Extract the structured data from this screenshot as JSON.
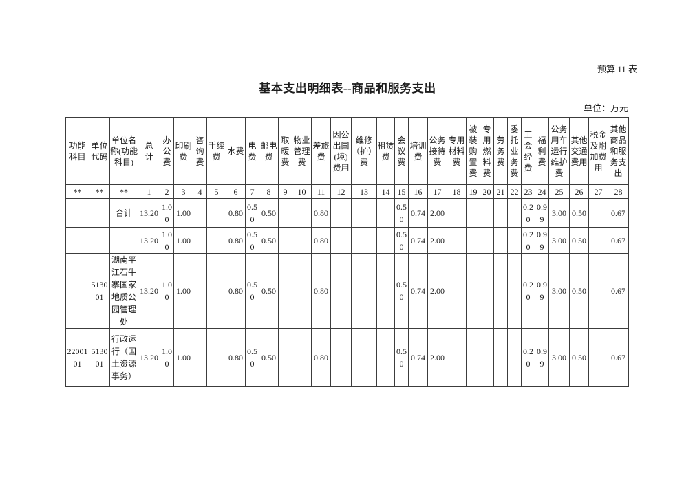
{
  "page": {
    "corner_note": "预算 11 表",
    "title": "基本支出明细表--商品和服务支出",
    "unit_note": "单位：万元"
  },
  "table": {
    "columns": [
      {
        "label": "功能科目",
        "num": "**"
      },
      {
        "label": "单位代码",
        "num": "**"
      },
      {
        "label": "单位名称(功能科目)",
        "num": "**"
      },
      {
        "label": "总计",
        "num": "1"
      },
      {
        "label": "办公费",
        "num": "2"
      },
      {
        "label": "印刷费",
        "num": "3"
      },
      {
        "label": "咨询费",
        "num": "4"
      },
      {
        "label": "手续费",
        "num": "5"
      },
      {
        "label": "水费",
        "num": "6"
      },
      {
        "label": "电费",
        "num": "7"
      },
      {
        "label": "邮电费",
        "num": "8"
      },
      {
        "label": "取暖费",
        "num": "9"
      },
      {
        "label": "物业管理费",
        "num": "10"
      },
      {
        "label": "差旅费",
        "num": "11"
      },
      {
        "label": "因公出国(境)费用",
        "num": "12"
      },
      {
        "label": "维修（护）费",
        "num": "13"
      },
      {
        "label": "租赁费",
        "num": "14"
      },
      {
        "label": "会议费",
        "num": "15"
      },
      {
        "label": "培训费",
        "num": "16"
      },
      {
        "label": "公务接待费",
        "num": "17"
      },
      {
        "label": "专用材料费",
        "num": "18"
      },
      {
        "label": "被装购置费",
        "num": "19"
      },
      {
        "label": "专用燃料费",
        "num": "20"
      },
      {
        "label": "劳务费",
        "num": "21"
      },
      {
        "label": "委托业务费",
        "num": "22"
      },
      {
        "label": "工会经费",
        "num": "23"
      },
      {
        "label": "福利费",
        "num": "24"
      },
      {
        "label": "公务用车运行维护费",
        "num": "25"
      },
      {
        "label": "其他交通费用",
        "num": "26"
      },
      {
        "label": "税金及附加费用",
        "num": "27"
      },
      {
        "label": "其他商品和服务支出",
        "num": "28"
      }
    ],
    "rows": [
      [
        "",
        "",
        "合计",
        "13.20",
        "1.00",
        "1.00",
        "",
        "",
        "0.80",
        "0.50",
        "0.50",
        "",
        "",
        "0.80",
        "",
        "",
        "",
        "0.50",
        "0.74",
        "2.00",
        "",
        "",
        "",
        "",
        "",
        "0.20",
        "0.99",
        "3.00",
        "0.50",
        "",
        "0.67"
      ],
      [
        "",
        "",
        "",
        "13.20",
        "1.00",
        "1.00",
        "",
        "",
        "0.80",
        "0.50",
        "0.50",
        "",
        "",
        "0.80",
        "",
        "",
        "",
        "0.50",
        "0.74",
        "2.00",
        "",
        "",
        "",
        "",
        "",
        "0.20",
        "0.99",
        "3.00",
        "0.50",
        "",
        "0.67"
      ],
      [
        "",
        "513001",
        "湖南平江石牛寨国家地质公园管理处",
        "13.20",
        "1.00",
        "1.00",
        "",
        "",
        "0.80",
        "0.50",
        "0.50",
        "",
        "",
        "0.80",
        "",
        "",
        "",
        "0.50",
        "0.74",
        "2.00",
        "",
        "",
        "",
        "",
        "",
        "0.20",
        "0.99",
        "3.00",
        "0.50",
        "",
        "0.67"
      ],
      [
        "2200101",
        "513001",
        "行政运行（国土资源事务）",
        "13.20",
        "1.00",
        "1.00",
        "",
        "",
        "0.80",
        "0.50",
        "0.50",
        "",
        "",
        "0.80",
        "",
        "",
        "",
        "0.50",
        "0.74",
        "2.00",
        "",
        "",
        "",
        "",
        "",
        "0.20",
        "0.99",
        "3.00",
        "0.50",
        "",
        "0.67"
      ]
    ]
  }
}
